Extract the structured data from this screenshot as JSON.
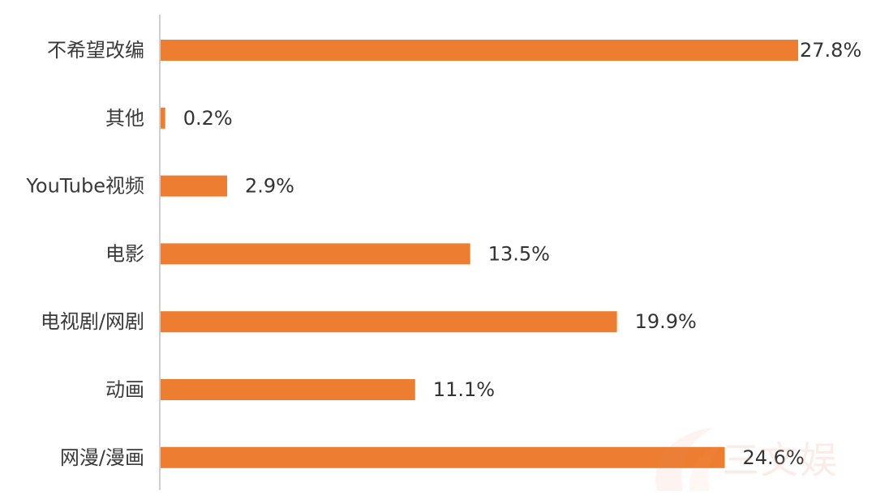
{
  "chart_data": {
    "type": "bar",
    "orientation": "horizontal",
    "categories": [
      "不希望改编",
      "其他",
      "YouTube视频",
      "电影",
      "电视剧/网剧",
      "动画",
      "网漫/漫画"
    ],
    "values": [
      27.8,
      0.2,
      2.9,
      13.5,
      19.9,
      11.1,
      24.6
    ],
    "value_labels": [
      "27.8%",
      "0.2%",
      "2.9%",
      "13.5%",
      "19.9%",
      "11.1%",
      "24.6%"
    ],
    "unit": "%",
    "bar_color": "#ED7D31",
    "axis_color": "#BFBFBF",
    "grid": false,
    "legend": "none"
  },
  "watermark": {
    "text": "三文娱"
  }
}
